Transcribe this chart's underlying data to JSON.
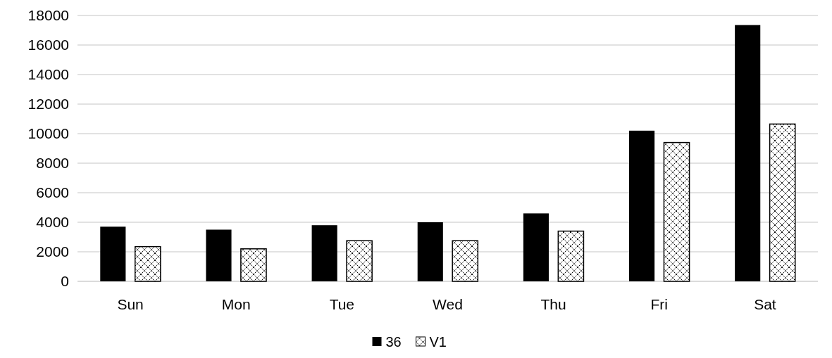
{
  "chart_data": {
    "type": "bar",
    "categories": [
      "Sun",
      "Mon",
      "Tue",
      "Wed",
      "Thu",
      "Fri",
      "Sat"
    ],
    "series": [
      {
        "name": "36",
        "color": "#000000",
        "values": [
          3700,
          3500,
          3800,
          4000,
          4600,
          10200,
          17350
        ]
      },
      {
        "name": "V1",
        "color": "#ffffff",
        "values": [
          2350,
          2200,
          2750,
          2750,
          3400,
          9400,
          10650
        ]
      }
    ],
    "ylim": [
      0,
      18000
    ],
    "yticks": [
      0,
      2000,
      4000,
      6000,
      8000,
      10000,
      12000,
      14000,
      16000,
      18000
    ],
    "grid": "y",
    "legend": "bottom"
  }
}
